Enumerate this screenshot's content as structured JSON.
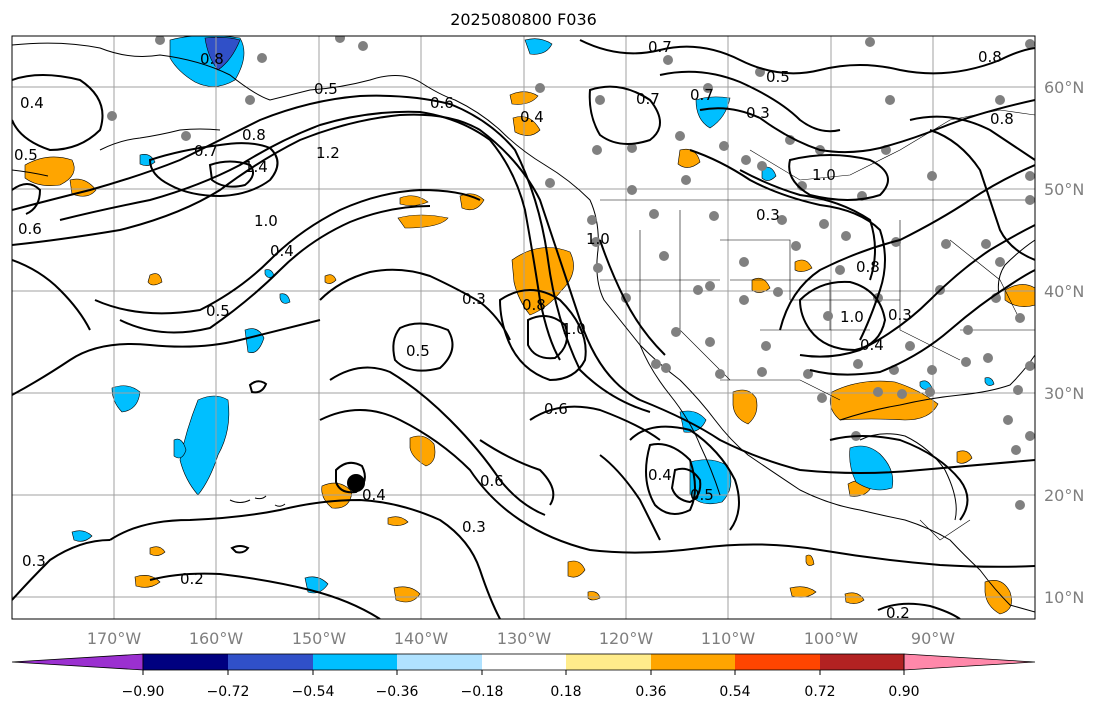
{
  "title": "2025080800 F036",
  "lon_labels": [
    "170°W",
    "160°W",
    "150°W",
    "140°W",
    "130°W",
    "120°W",
    "110°W",
    "100°W",
    "90°W"
  ],
  "lat_labels": [
    "60°N",
    "50°N",
    "40°N",
    "30°N",
    "20°N",
    "10°N"
  ],
  "contour_labels": [
    "0.7",
    "0.8",
    "0.5",
    "0.6",
    "0.4",
    "0.7",
    "0.7",
    "0.3",
    "0.8",
    "0.5",
    "0.7",
    "1.4",
    "1.2",
    "1.0",
    "0.8",
    "1.0",
    "0.4",
    "0.5",
    "0.3",
    "0.8",
    "1.0",
    "1.0",
    "0.3",
    "0.8",
    "1.0",
    "0.4",
    "0.3",
    "0.5",
    "0.6",
    "0.6",
    "0.4",
    "0.5",
    "0.3",
    "0.4",
    "0.2",
    "0.3",
    "0.2",
    "0.6",
    "0.5",
    "0.8",
    "0.4"
  ],
  "colorbar": {
    "ticks": [
      "−0.90",
      "−0.72",
      "−0.54",
      "−0.36",
      "−0.18",
      "0.18",
      "0.36",
      "0.54",
      "0.72",
      "0.90"
    ],
    "colors": [
      "#9b30d0",
      "#000080",
      "#3050c8",
      "#00bfff",
      "#b0e2ff",
      "#ffffff",
      "#ffec8b",
      "#ffa500",
      "#ff4500",
      "#b22222",
      "#ff88aa"
    ]
  },
  "colors": {
    "contour": "#000000",
    "grid": "#a0a0a0",
    "stations": "#808080",
    "positive_anomaly": "#ffa500",
    "negative_anomaly": "#00bfff"
  }
}
